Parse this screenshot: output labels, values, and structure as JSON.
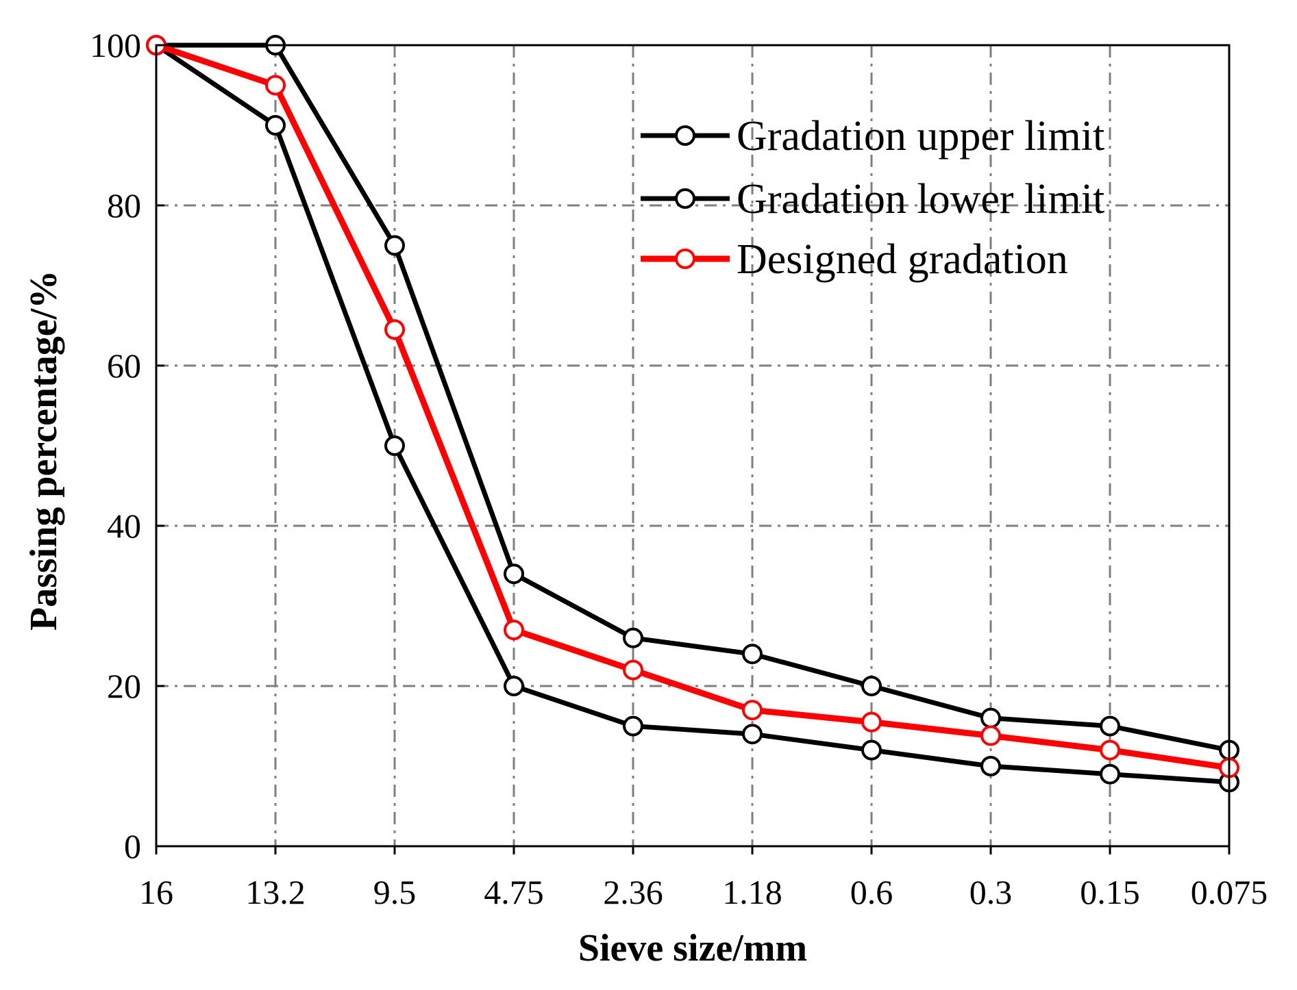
{
  "chart_data": {
    "type": "line",
    "title": "",
    "xlabel": "Sieve size/mm",
    "ylabel": "Passing percentage/%",
    "categories": [
      "16",
      "13.2",
      "9.5",
      "4.75",
      "2.36",
      "1.18",
      "0.6",
      "0.3",
      "0.15",
      "0.075"
    ],
    "ylim": [
      0,
      100
    ],
    "yticks": [
      0,
      20,
      40,
      60,
      80,
      100
    ],
    "grid": true,
    "legend_position": "top-right",
    "series": [
      {
        "name": "Gradation upper limit",
        "color": "#000000",
        "values": [
          100,
          100,
          75,
          34,
          26,
          24,
          20,
          16,
          15,
          12
        ]
      },
      {
        "name": "Gradation lower limit",
        "color": "#000000",
        "values": [
          100,
          90,
          50,
          20,
          15,
          14,
          12,
          10,
          9,
          8
        ]
      },
      {
        "name": "Designed gradation",
        "color": "#ff0000",
        "values": [
          100,
          95,
          64.5,
          27,
          22,
          17,
          15.5,
          13.8,
          12,
          9.8
        ]
      }
    ]
  }
}
